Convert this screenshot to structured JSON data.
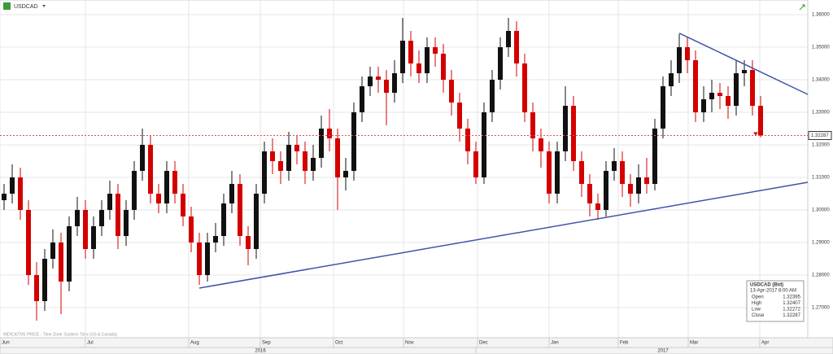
{
  "chart_data": {
    "type": "candlestick",
    "title": "USDCAD",
    "ylim": [
      1.26075,
      1.3645
    ],
    "yticks": [
      {
        "value": 1.27,
        "label": "1.27000"
      },
      {
        "value": 1.28,
        "label": "1.28000"
      },
      {
        "value": 1.29,
        "label": "1.29000"
      },
      {
        "value": 1.3,
        "label": "1.30000"
      },
      {
        "value": 1.31,
        "label": "1.31000"
      },
      {
        "value": 1.32,
        "label": "1.32000"
      },
      {
        "value": 1.33,
        "label": "1.33000"
      },
      {
        "value": 1.34,
        "label": "1.34000"
      },
      {
        "value": 1.35,
        "label": "1.35000"
      },
      {
        "value": 1.36,
        "label": "1.36000"
      }
    ],
    "months": [
      "Jun",
      "Jul",
      "Aug",
      "Sep",
      "Oct",
      "Nov",
      "Dec",
      "Jan",
      "Feb",
      "Mar",
      "Apr"
    ],
    "years": [
      "2016",
      "2017"
    ],
    "grid": true,
    "up_color": "#111111",
    "down_color": "#d40000",
    "candles": [
      [
        1.303,
        1.308,
        1.3,
        1.305
      ],
      [
        1.305,
        1.314,
        1.302,
        1.31
      ],
      [
        1.31,
        1.313,
        1.297,
        1.3
      ],
      [
        1.3,
        1.303,
        1.277,
        1.28
      ],
      [
        1.28,
        1.284,
        1.266,
        1.272
      ],
      [
        1.272,
        1.288,
        1.269,
        1.285
      ],
      [
        1.285,
        1.294,
        1.282,
        1.29
      ],
      [
        1.29,
        1.293,
        1.268,
        1.278
      ],
      [
        1.278,
        1.298,
        1.275,
        1.295
      ],
      [
        1.295,
        1.304,
        1.292,
        1.3
      ],
      [
        1.3,
        1.303,
        1.285,
        1.288
      ],
      [
        1.288,
        1.298,
        1.285,
        1.295
      ],
      [
        1.295,
        1.303,
        1.292,
        1.3
      ],
      [
        1.3,
        1.309,
        1.297,
        1.305
      ],
      [
        1.305,
        1.308,
        1.288,
        1.292
      ],
      [
        1.292,
        1.303,
        1.289,
        1.3
      ],
      [
        1.3,
        1.315,
        1.297,
        1.312
      ],
      [
        1.312,
        1.325,
        1.309,
        1.32
      ],
      [
        1.32,
        1.323,
        1.302,
        1.305
      ],
      [
        1.305,
        1.308,
        1.299,
        1.302
      ],
      [
        1.302,
        1.315,
        1.299,
        1.312
      ],
      [
        1.312,
        1.315,
        1.302,
        1.305
      ],
      [
        1.305,
        1.308,
        1.295,
        1.298
      ],
      [
        1.298,
        1.301,
        1.287,
        1.29
      ],
      [
        1.29,
        1.293,
        1.277,
        1.28
      ],
      [
        1.28,
        1.293,
        1.278,
        1.29
      ],
      [
        1.29,
        1.296,
        1.287,
        1.292
      ],
      [
        1.292,
        1.305,
        1.289,
        1.302
      ],
      [
        1.302,
        1.312,
        1.299,
        1.308
      ],
      [
        1.308,
        1.311,
        1.289,
        1.292
      ],
      [
        1.292,
        1.295,
        1.283,
        1.288
      ],
      [
        1.288,
        1.308,
        1.285,
        1.305
      ],
      [
        1.305,
        1.321,
        1.302,
        1.318
      ],
      [
        1.318,
        1.322,
        1.311,
        1.315
      ],
      [
        1.315,
        1.318,
        1.308,
        1.312
      ],
      [
        1.312,
        1.324,
        1.309,
        1.32
      ],
      [
        1.32,
        1.323,
        1.314,
        1.318
      ],
      [
        1.318,
        1.321,
        1.308,
        1.312
      ],
      [
        1.312,
        1.32,
        1.309,
        1.316
      ],
      [
        1.316,
        1.329,
        1.313,
        1.325
      ],
      [
        1.325,
        1.331,
        1.318,
        1.322
      ],
      [
        1.322,
        1.325,
        1.3,
        1.31
      ],
      [
        1.31,
        1.316,
        1.306,
        1.312
      ],
      [
        1.312,
        1.333,
        1.309,
        1.33
      ],
      [
        1.33,
        1.341,
        1.327,
        1.338
      ],
      [
        1.338,
        1.344,
        1.335,
        1.341
      ],
      [
        1.341,
        1.344,
        1.336,
        1.34
      ],
      [
        1.34,
        1.343,
        1.326,
        1.336
      ],
      [
        1.336,
        1.346,
        1.333,
        1.342
      ],
      [
        1.342,
        1.359,
        1.339,
        1.352
      ],
      [
        1.352,
        1.355,
        1.341,
        1.345
      ],
      [
        1.345,
        1.349,
        1.339,
        1.342
      ],
      [
        1.342,
        1.353,
        1.339,
        1.35
      ],
      [
        1.35,
        1.353,
        1.344,
        1.348
      ],
      [
        1.348,
        1.351,
        1.336,
        1.34
      ],
      [
        1.34,
        1.343,
        1.329,
        1.333
      ],
      [
        1.333,
        1.336,
        1.321,
        1.325
      ],
      [
        1.325,
        1.328,
        1.314,
        1.318
      ],
      [
        1.318,
        1.321,
        1.308,
        1.31
      ],
      [
        1.31,
        1.333,
        1.308,
        1.33
      ],
      [
        1.33,
        1.343,
        1.327,
        1.34
      ],
      [
        1.34,
        1.353,
        1.337,
        1.35
      ],
      [
        1.35,
        1.359,
        1.347,
        1.355
      ],
      [
        1.355,
        1.358,
        1.341,
        1.345
      ],
      [
        1.345,
        1.348,
        1.327,
        1.33
      ],
      [
        1.33,
        1.333,
        1.318,
        1.322
      ],
      [
        1.322,
        1.325,
        1.313,
        1.318
      ],
      [
        1.318,
        1.321,
        1.302,
        1.305
      ],
      [
        1.305,
        1.321,
        1.302,
        1.318
      ],
      [
        1.318,
        1.338,
        1.315,
        1.332
      ],
      [
        1.332,
        1.335,
        1.312,
        1.315
      ],
      [
        1.315,
        1.318,
        1.304,
        1.308
      ],
      [
        1.308,
        1.311,
        1.298,
        1.302
      ],
      [
        1.302,
        1.305,
        1.297,
        1.3
      ],
      [
        1.3,
        1.315,
        1.298,
        1.312
      ],
      [
        1.312,
        1.319,
        1.309,
        1.315
      ],
      [
        1.315,
        1.318,
        1.304,
        1.308
      ],
      [
        1.308,
        1.311,
        1.301,
        1.305
      ],
      [
        1.305,
        1.314,
        1.302,
        1.31
      ],
      [
        1.31,
        1.316,
        1.305,
        1.308
      ],
      [
        1.308,
        1.328,
        1.306,
        1.325
      ],
      [
        1.325,
        1.341,
        1.322,
        1.338
      ],
      [
        1.338,
        1.346,
        1.335,
        1.342
      ],
      [
        1.342,
        1.354,
        1.339,
        1.35
      ],
      [
        1.35,
        1.353,
        1.342,
        1.346
      ],
      [
        1.346,
        1.349,
        1.327,
        1.33
      ],
      [
        1.33,
        1.338,
        1.327,
        1.334
      ],
      [
        1.334,
        1.34,
        1.33,
        1.336
      ],
      [
        1.336,
        1.339,
        1.331,
        1.335
      ],
      [
        1.335,
        1.338,
        1.328,
        1.332
      ],
      [
        1.332,
        1.346,
        1.329,
        1.342
      ],
      [
        1.342,
        1.346,
        1.338,
        1.343
      ],
      [
        1.343,
        1.346,
        1.329,
        1.332
      ],
      [
        1.332,
        1.335,
        1.3223,
        1.3229
      ]
    ],
    "trendlines": [
      {
        "start": 1.276,
        "end": 1.3085
      },
      {
        "start": 1.3543,
        "end": 1.3355
      }
    ],
    "last_price": 1.32287,
    "info": {
      "title": "USDCAD (Bid)",
      "time": "13-Apr-2017 8:00 AM",
      "rows": [
        [
          "Open",
          1.32395
        ],
        [
          "High",
          1.32407
        ],
        [
          "Low",
          1.32272
        ],
        [
          "Close",
          1.32287
        ]
      ]
    },
    "footer": "INDICATIVE PRICE - Time Zone: Eastern Time (US & Canada)"
  }
}
